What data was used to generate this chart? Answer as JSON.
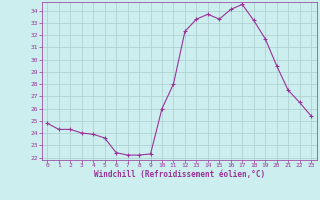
{
  "x": [
    0,
    1,
    2,
    3,
    4,
    5,
    6,
    7,
    8,
    9,
    10,
    11,
    12,
    13,
    14,
    15,
    16,
    17,
    18,
    19,
    20,
    21,
    22,
    23
  ],
  "y": [
    24.8,
    24.3,
    24.3,
    24.0,
    23.9,
    23.6,
    22.4,
    22.2,
    22.2,
    22.3,
    26.0,
    28.0,
    32.3,
    33.3,
    33.7,
    33.3,
    34.1,
    34.5,
    33.2,
    31.7,
    29.5,
    27.5,
    26.5,
    25.4
  ],
  "line_color": "#993399",
  "marker": "+",
  "marker_color": "#993399",
  "bg_color": "#cceeee",
  "grid_color": "#aacccc",
  "xlabel": "Windchill (Refroidissement éolien,°C)",
  "xlabel_color": "#993399",
  "tick_color": "#993399",
  "ylim": [
    21.8,
    34.7
  ],
  "xlim": [
    -0.5,
    23.5
  ],
  "yticks": [
    22,
    23,
    24,
    25,
    26,
    27,
    28,
    29,
    30,
    31,
    32,
    33,
    34
  ],
  "xticks": [
    0,
    1,
    2,
    3,
    4,
    5,
    6,
    7,
    8,
    9,
    10,
    11,
    12,
    13,
    14,
    15,
    16,
    17,
    18,
    19,
    20,
    21,
    22,
    23
  ]
}
